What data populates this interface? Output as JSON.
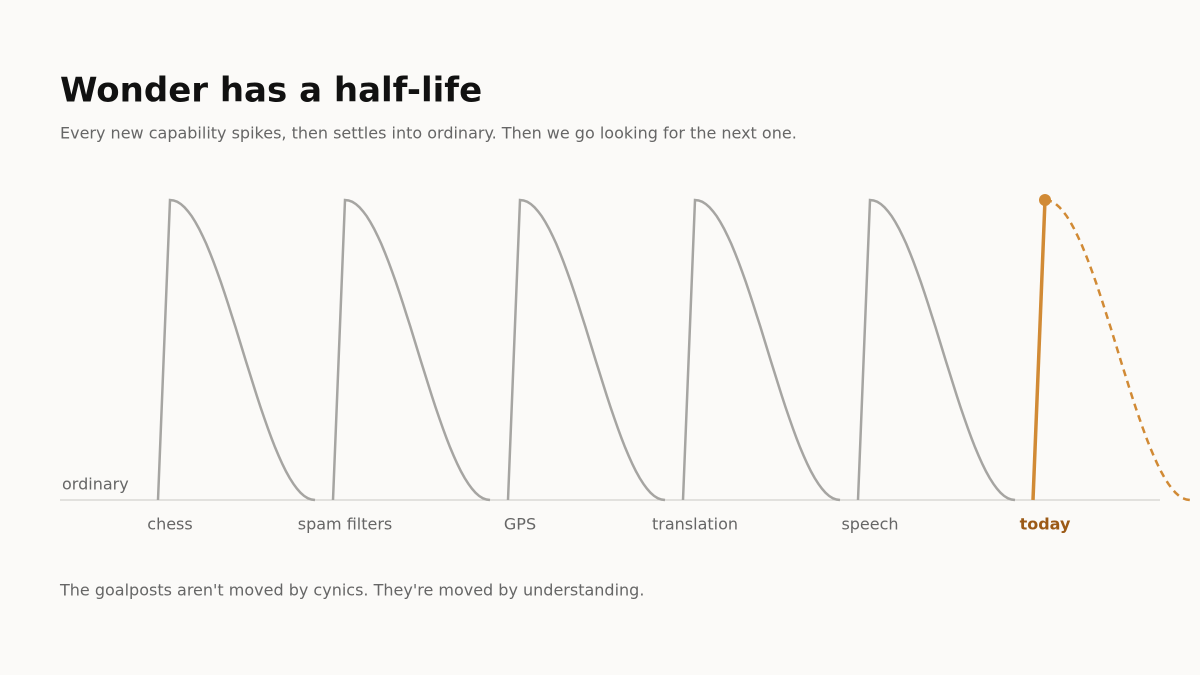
{
  "title": "Wonder has a half-life",
  "subtitle": "Every new capability spikes, then settles into ordinary. Then we go looking for the next one.",
  "baseline_label": "ordinary",
  "moments": [
    "chess",
    "spam filters",
    "GPS",
    "translation",
    "speech",
    "today"
  ],
  "footer": "The goalposts aren't moved by cynics. They're moved by understanding."
}
